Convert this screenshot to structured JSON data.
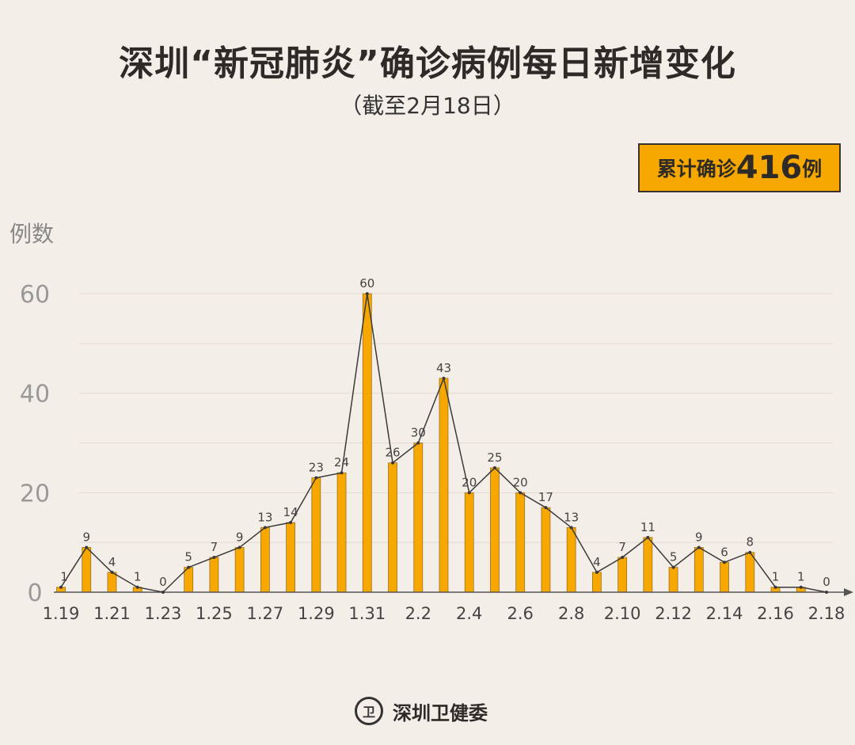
{
  "header": {
    "title": "深圳“新冠肺炎”确诊病例每日新增变化",
    "subtitle": "（截至2月18日）"
  },
  "badge": {
    "prefix": "累计确诊",
    "number": "416",
    "suffix": "例"
  },
  "footer": {
    "org": "深圳卫健委"
  },
  "colors": {
    "bar": "#f6a800",
    "bar_border": "#a07020",
    "line": "#3a3a3a",
    "background": "#f4eee9"
  },
  "chart_data": {
    "type": "bar",
    "title": "深圳“新冠肺炎”确诊病例每日新增变化",
    "ylabel": "例数",
    "xlabel": "",
    "ylim": [
      0,
      60
    ],
    "yticks": [
      0,
      20,
      40,
      60
    ],
    "grid": true,
    "overlay": "line",
    "categories": [
      "1.19",
      "1.20",
      "1.21",
      "1.22",
      "1.23",
      "1.24",
      "1.25",
      "1.26",
      "1.27",
      "1.28",
      "1.29",
      "1.30",
      "1.31",
      "2.1",
      "2.2",
      "2.3",
      "2.4",
      "2.5",
      "2.6",
      "2.7",
      "2.8",
      "2.9",
      "2.10",
      "2.11",
      "2.12",
      "2.13",
      "2.14",
      "2.15",
      "2.16",
      "2.17",
      "2.18"
    ],
    "xtick_labels": [
      "1.19",
      "1.21",
      "1.23",
      "1.25",
      "1.27",
      "1.29",
      "1.31",
      "2.2",
      "2.4",
      "2.6",
      "2.8",
      "2.10",
      "2.12",
      "2.14",
      "2.16",
      "2.18"
    ],
    "values": [
      1,
      9,
      4,
      1,
      0,
      5,
      7,
      9,
      13,
      14,
      23,
      24,
      60,
      26,
      30,
      43,
      20,
      25,
      20,
      17,
      13,
      4,
      7,
      11,
      5,
      9,
      6,
      8,
      1,
      1,
      0
    ]
  }
}
